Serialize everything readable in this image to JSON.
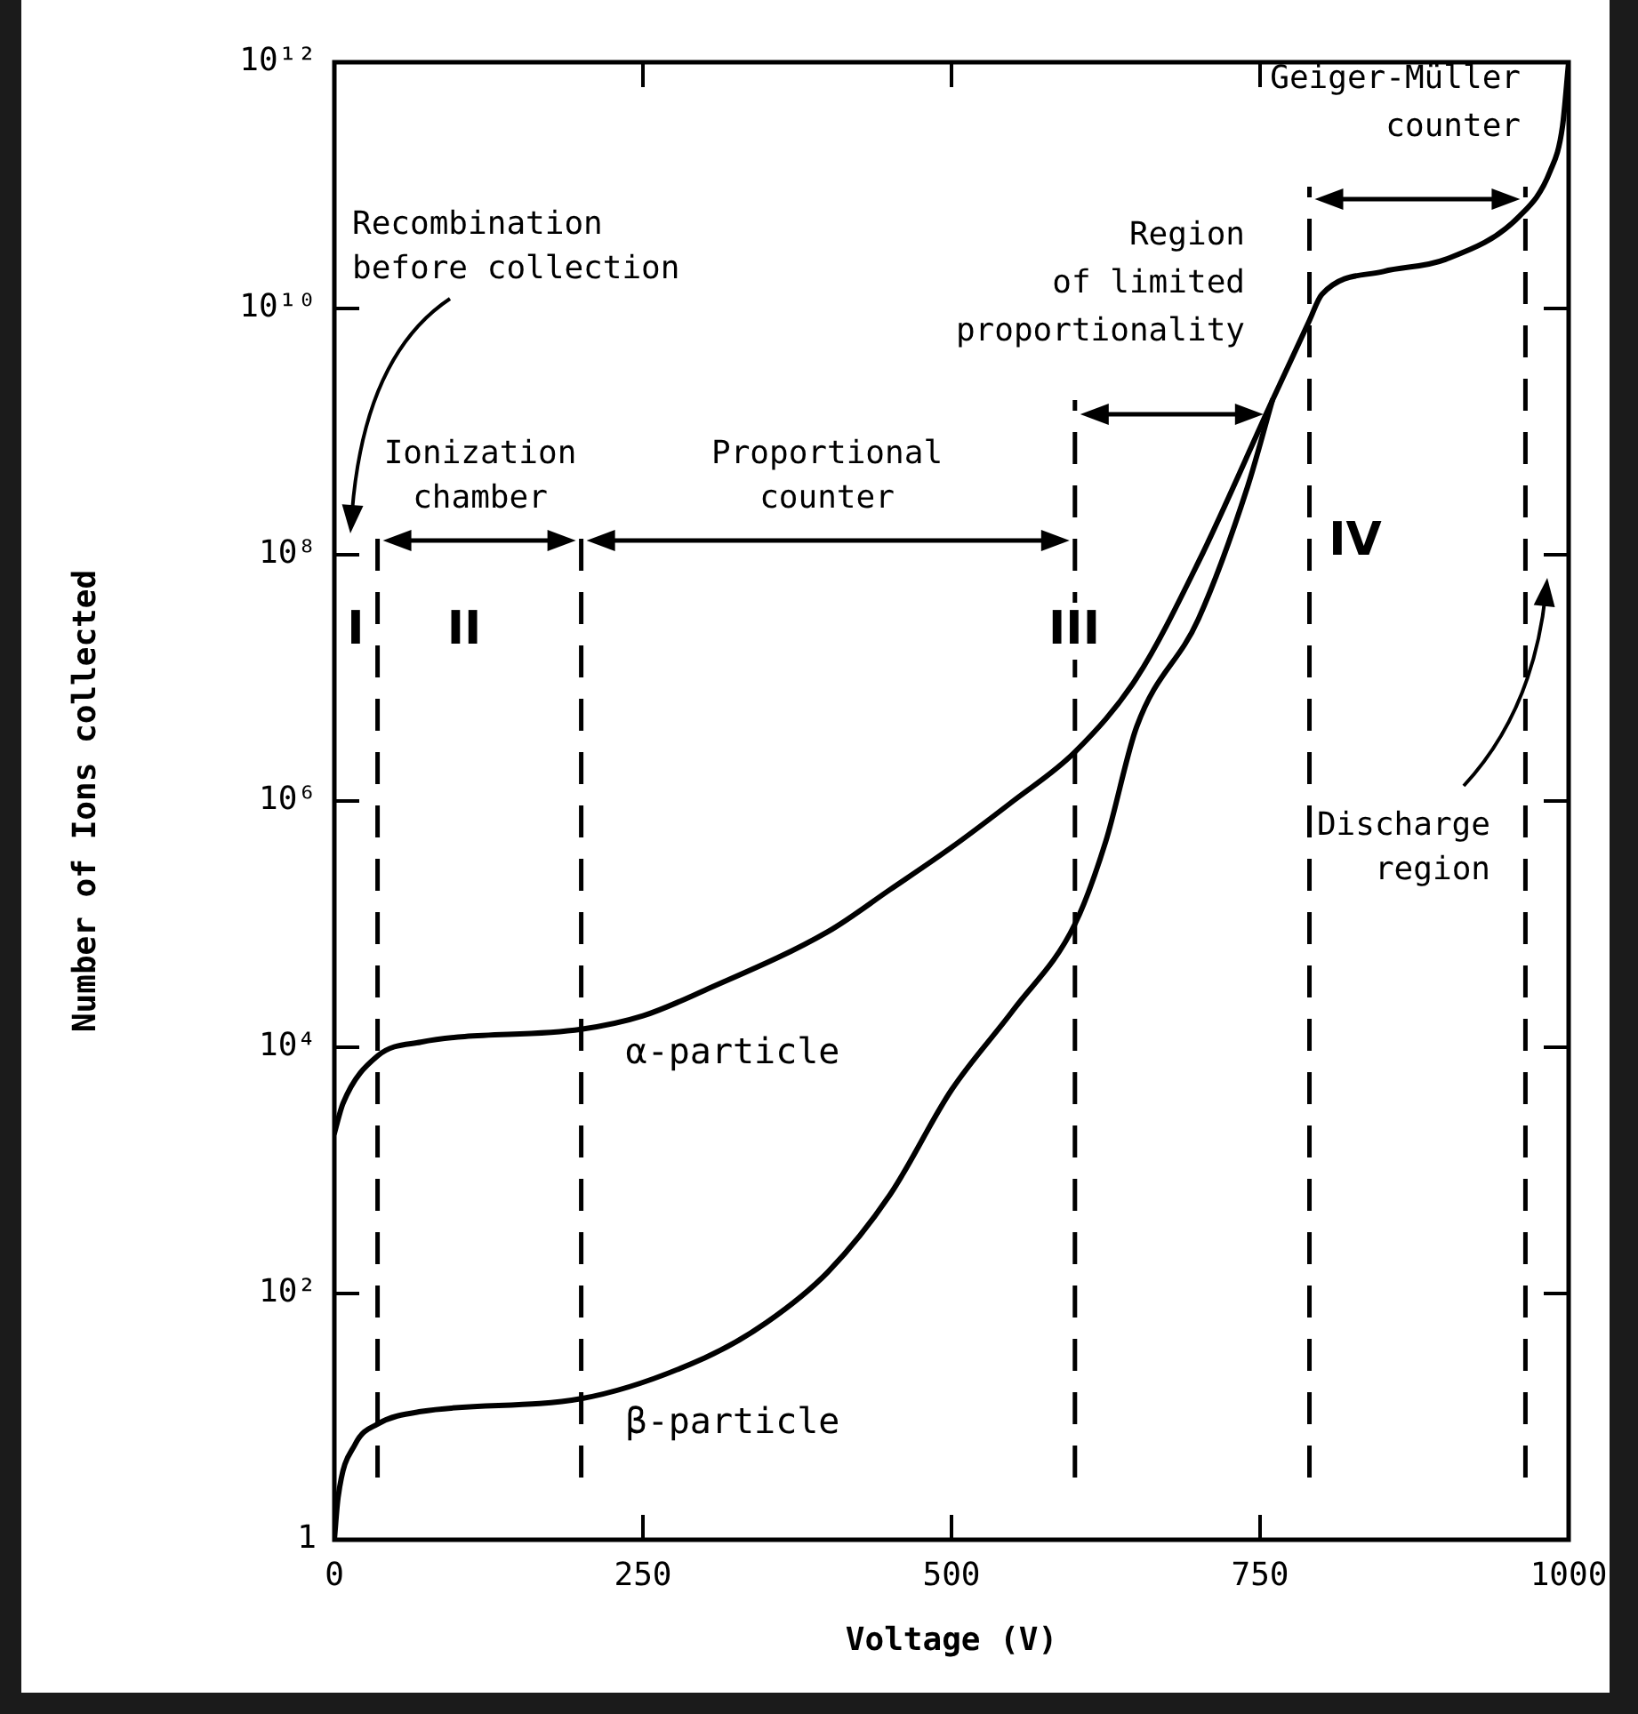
{
  "chart_data": {
    "type": "line",
    "xlabel": "Voltage (V)",
    "ylabel": "Number of Ions collected",
    "log": "y",
    "grid": false,
    "legend": false,
    "marker": "none",
    "line_style": "solid",
    "xlim": [
      0,
      1000
    ],
    "xticks": [
      0,
      250,
      500,
      750,
      1000
    ],
    "ylim": [
      1,
      1000000000000.0
    ],
    "yticks": [
      {
        "value": 1,
        "label": "1"
      },
      {
        "value": 100.0,
        "label": "10²"
      },
      {
        "value": 10000.0,
        "label": "10⁴"
      },
      {
        "value": 1000000.0,
        "label": "10⁶"
      },
      {
        "value": 100000000.0,
        "label": "10⁸"
      },
      {
        "value": 10000000000.0,
        "label": "10¹⁰"
      },
      {
        "value": 1000000000000.0,
        "label": "10¹²"
      }
    ],
    "series": [
      {
        "name": "α-particle",
        "color": "#000000",
        "x": [
          0,
          7,
          35,
          70,
          200,
          250,
          300,
          400,
          450,
          500,
          550,
          600,
          650,
          700,
          760,
          790,
          800,
          850,
          900,
          960,
          985,
          995,
          1000
        ],
        "values": [
          2000,
          3500,
          8500,
          11000,
          14000,
          18000,
          29000,
          87000,
          190000,
          420000,
          1000000,
          2500000,
          10000000,
          87000000,
          1800000000,
          8000000000,
          13000000000,
          20000000000,
          25000000000,
          56000000000,
          130000000000,
          300000000000,
          1000000000000
        ]
      },
      {
        "name": "β-particle",
        "color": "#000000",
        "x": [
          0,
          3,
          17,
          35,
          70,
          200,
          300,
          350,
          400,
          450,
          500,
          550,
          600,
          625,
          650,
          700,
          740,
          760
        ],
        "values": [
          1,
          2.2,
          6,
          8.7,
          11,
          14,
          30,
          58,
          150,
          630,
          4500,
          20000,
          100000,
          470000,
          4000000,
          30000000,
          360000000,
          1800000000
        ]
      }
    ],
    "ref_lines": [
      {
        "axis": "x",
        "value": 35,
        "line_style": "dashed"
      },
      {
        "axis": "x",
        "value": 200,
        "line_style": "dashed"
      },
      {
        "axis": "x",
        "value": 600,
        "line_style": "dashed"
      },
      {
        "axis": "x",
        "value": 790,
        "line_style": "dashed"
      },
      {
        "axis": "x",
        "value": 965,
        "line_style": "dashed"
      }
    ],
    "annotations": [
      "Recombination\nbefore collection",
      "Ionization\nchamber",
      "Proportional\ncounter",
      "Region\nof limited\nproportionality",
      "Geiger-Müller\ncounter",
      "I",
      "II",
      "III",
      "IV",
      "Discharge\nregion"
    ]
  }
}
